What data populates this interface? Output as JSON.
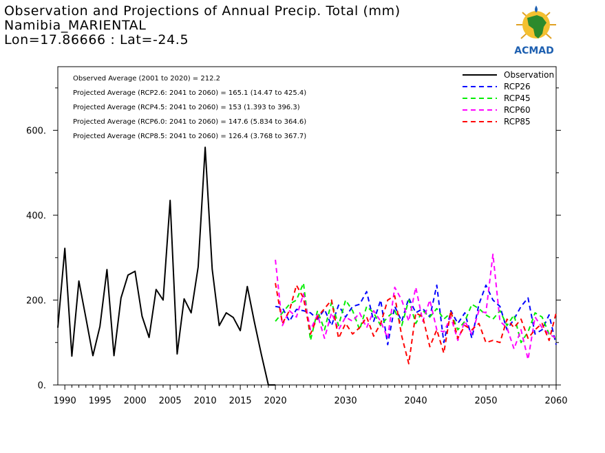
{
  "title": {
    "line1": "Observation and Projections of Annual Precip. Total (mm)",
    "line2": "Namibia_MARIENTAL",
    "line3": "Lon=17.86666 : Lat=-24.5"
  },
  "logo": {
    "text": "ACMAD",
    "icon": "africa-map-logo-icon"
  },
  "info_lines": [
    "Observed Average (2001 to 2020) = 212.2",
    "Projected Average (RCP2.6: 2041 to 2060) = 165.1 (14.47 to 425.4)",
    "Projected Average (RCP4.5: 2041 to 2060) = 153 (1.393 to 396.3)",
    "Projected Average (RCP6.0: 2041 to 2060) = 147.6 (5.834 to 364.6)",
    "Projected Average (RCP8.5: 2041 to 2060) = 126.4 (3.768 to 367.7)"
  ],
  "colors": {
    "Observation": "#000000",
    "RCP26": "#0000ff",
    "RCP45": "#00ee00",
    "RCP60": "#ff00ff",
    "RCP85": "#ff0000"
  },
  "chart_data": {
    "type": "line",
    "xlim": [
      1989,
      2060
    ],
    "ylim": [
      0,
      750
    ],
    "x_ticks": [
      1990,
      1995,
      2000,
      2005,
      2010,
      2015,
      2020,
      2030,
      2040,
      2050,
      2060
    ],
    "y_ticks": [
      0,
      200,
      400,
      600
    ],
    "y_tick_labels": [
      "0.",
      "200.",
      "400.",
      "600."
    ],
    "legend_position": "top-right",
    "series": [
      {
        "name": "Observation",
        "style": "solid",
        "x": [
          1989,
          1990,
          1991,
          1992,
          1993,
          1994,
          1995,
          1996,
          1997,
          1998,
          1999,
          2000,
          2001,
          2002,
          2003,
          2004,
          2005,
          2006,
          2007,
          2008,
          2009,
          2010,
          2011,
          2012,
          2013,
          2014,
          2015,
          2016,
          2017,
          2018,
          2019,
          2020
        ],
        "y": [
          135,
          322,
          68,
          245,
          158,
          69,
          138,
          272,
          69,
          205,
          259,
          268,
          162,
          112,
          225,
          200,
          435,
          73,
          203,
          170,
          278,
          560,
          273,
          140,
          170,
          159,
          128,
          232,
          149,
          72,
          0,
          0
        ]
      },
      {
        "name": "RCP26",
        "style": "dashed",
        "x": [
          2020,
          2021,
          2022,
          2023,
          2024,
          2025,
          2026,
          2027,
          2028,
          2029,
          2030,
          2031,
          2032,
          2033,
          2034,
          2035,
          2036,
          2037,
          2038,
          2039,
          2040,
          2041,
          2042,
          2043,
          2044,
          2045,
          2046,
          2047,
          2048,
          2049,
          2050,
          2051,
          2052,
          2053,
          2054,
          2055,
          2056,
          2057,
          2058,
          2059,
          2060
        ],
        "y": [
          185,
          182,
          150,
          178,
          175,
          170,
          155,
          178,
          140,
          188,
          160,
          185,
          190,
          220,
          150,
          200,
          95,
          185,
          150,
          205,
          170,
          180,
          160,
          235,
          100,
          175,
          145,
          170,
          110,
          190,
          235,
          200,
          185,
          130,
          155,
          185,
          205,
          120,
          130,
          165,
          95
        ]
      },
      {
        "name": "RCP45",
        "style": "dashed",
        "x": [
          2020,
          2021,
          2022,
          2023,
          2024,
          2025,
          2026,
          2027,
          2028,
          2029,
          2030,
          2031,
          2032,
          2033,
          2034,
          2035,
          2036,
          2037,
          2038,
          2039,
          2040,
          2041,
          2042,
          2043,
          2044,
          2045,
          2046,
          2047,
          2048,
          2049,
          2050,
          2051,
          2052,
          2053,
          2054,
          2055,
          2056,
          2057,
          2058,
          2059,
          2060
        ],
        "y": [
          150,
          170,
          190,
          200,
          240,
          105,
          175,
          130,
          195,
          140,
          200,
          175,
          130,
          185,
          170,
          140,
          160,
          175,
          140,
          200,
          145,
          175,
          160,
          180,
          155,
          170,
          130,
          150,
          190,
          180,
          165,
          155,
          175,
          140,
          165,
          100,
          125,
          170,
          160,
          120,
          110
        ]
      },
      {
        "name": "RCP60",
        "style": "dashed",
        "x": [
          2020,
          2021,
          2022,
          2023,
          2024,
          2025,
          2026,
          2027,
          2028,
          2029,
          2030,
          2031,
          2032,
          2033,
          2034,
          2035,
          2036,
          2037,
          2038,
          2039,
          2040,
          2041,
          2042,
          2043,
          2044,
          2045,
          2046,
          2047,
          2048,
          2049,
          2050,
          2051,
          2052,
          2053,
          2054,
          2055,
          2056,
          2057,
          2058,
          2059,
          2060
        ],
        "y": [
          295,
          140,
          175,
          160,
          215,
          130,
          165,
          110,
          170,
          130,
          160,
          150,
          170,
          135,
          175,
          150,
          110,
          230,
          200,
          150,
          230,
          150,
          200,
          130,
          125,
          160,
          105,
          150,
          120,
          175,
          170,
          308,
          150,
          135,
          85,
          130,
          60,
          160,
          135,
          120,
          110
        ]
      },
      {
        "name": "RCP85",
        "style": "dashed",
        "x": [
          2020,
          2021,
          2022,
          2023,
          2024,
          2025,
          2026,
          2027,
          2028,
          2029,
          2030,
          2031,
          2032,
          2033,
          2034,
          2035,
          2036,
          2037,
          2038,
          2039,
          2040,
          2041,
          2042,
          2043,
          2044,
          2045,
          2046,
          2047,
          2048,
          2049,
          2050,
          2051,
          2052,
          2053,
          2054,
          2055,
          2056,
          2057,
          2058,
          2059,
          2060
        ],
        "y": [
          240,
          145,
          175,
          235,
          205,
          120,
          160,
          180,
          200,
          110,
          145,
          120,
          135,
          160,
          115,
          145,
          200,
          210,
          115,
          50,
          170,
          160,
          90,
          130,
          75,
          175,
          110,
          140,
          130,
          145,
          100,
          105,
          100,
          155,
          135,
          155,
          110,
          130,
          145,
          105,
          170
        ]
      }
    ]
  }
}
